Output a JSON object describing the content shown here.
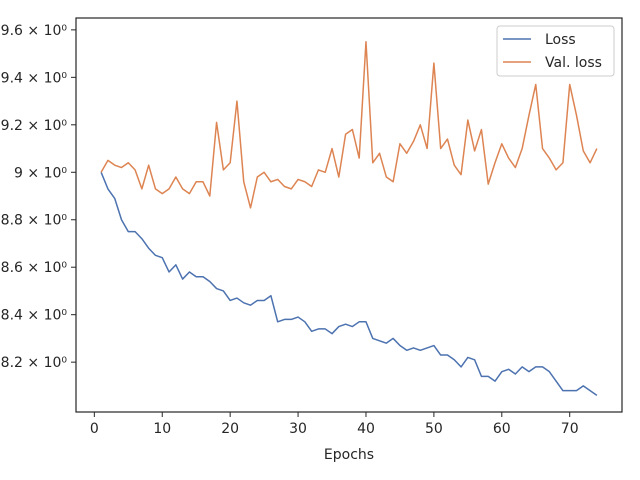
{
  "chart_data": {
    "type": "line",
    "xlabel": "Epochs",
    "ylabel": "",
    "title": "",
    "xlim": [
      -2.7,
      77.7
    ],
    "ylim": [
      7.99,
      9.65
    ],
    "x_ticks": [
      0,
      10,
      20,
      30,
      40,
      50,
      60,
      70
    ],
    "x_tick_labels": [
      "0",
      "10",
      "20",
      "30",
      "40",
      "50",
      "60",
      "70"
    ],
    "y_ticks": [
      8.2,
      8.4,
      8.6,
      8.8,
      9.0,
      9.2,
      9.4,
      9.6
    ],
    "y_tick_labels": [
      "8.2 × 10⁰",
      "8.4 × 10⁰",
      "8.6 × 10⁰",
      "8.8 × 10⁰",
      "9 × 10⁰",
      "9.2 × 10⁰",
      "9.4 × 10⁰",
      "9.6 × 10⁰"
    ],
    "legend_position": "top-right",
    "grid": false,
    "series": [
      {
        "name": "Loss",
        "color": "#4c72b0",
        "x": [
          1,
          2,
          3,
          4,
          5,
          6,
          7,
          8,
          9,
          10,
          11,
          12,
          13,
          14,
          15,
          16,
          17,
          18,
          19,
          20,
          21,
          22,
          23,
          24,
          25,
          26,
          27,
          28,
          29,
          30,
          31,
          32,
          33,
          34,
          35,
          36,
          37,
          38,
          39,
          40,
          41,
          42,
          43,
          44,
          45,
          46,
          47,
          48,
          49,
          50,
          51,
          52,
          53,
          54,
          55,
          56,
          57,
          58,
          59,
          60,
          61,
          62,
          63,
          64,
          65,
          66,
          67,
          68,
          69,
          70,
          71,
          72,
          73,
          74
        ],
        "values": [
          9.0,
          8.93,
          8.89,
          8.8,
          8.75,
          8.75,
          8.72,
          8.68,
          8.65,
          8.64,
          8.58,
          8.61,
          8.55,
          8.58,
          8.56,
          8.56,
          8.54,
          8.51,
          8.5,
          8.46,
          8.47,
          8.45,
          8.44,
          8.46,
          8.46,
          8.48,
          8.37,
          8.38,
          8.38,
          8.39,
          8.37,
          8.33,
          8.34,
          8.34,
          8.32,
          8.35,
          8.36,
          8.35,
          8.37,
          8.37,
          8.3,
          8.29,
          8.28,
          8.3,
          8.27,
          8.25,
          8.26,
          8.25,
          8.26,
          8.27,
          8.23,
          8.23,
          8.21,
          8.18,
          8.22,
          8.21,
          8.14,
          8.14,
          8.12,
          8.16,
          8.17,
          8.15,
          8.18,
          8.16,
          8.18,
          8.18,
          8.16,
          8.12,
          8.08,
          8.08,
          8.08,
          8.1,
          8.08,
          8.06
        ]
      },
      {
        "name": "Val. loss",
        "color": "#dd8452",
        "x": [
          1,
          2,
          3,
          4,
          5,
          6,
          7,
          8,
          9,
          10,
          11,
          12,
          13,
          14,
          15,
          16,
          17,
          18,
          19,
          20,
          21,
          22,
          23,
          24,
          25,
          26,
          27,
          28,
          29,
          30,
          31,
          32,
          33,
          34,
          35,
          36,
          37,
          38,
          39,
          40,
          41,
          42,
          43,
          44,
          45,
          46,
          47,
          48,
          49,
          50,
          51,
          52,
          53,
          54,
          55,
          56,
          57,
          58,
          59,
          60,
          61,
          62,
          63,
          64,
          65,
          66,
          67,
          68,
          69,
          70,
          71,
          72,
          73,
          74
        ],
        "values": [
          9.0,
          9.05,
          9.03,
          9.02,
          9.04,
          9.01,
          8.93,
          9.03,
          8.93,
          8.91,
          8.93,
          8.98,
          8.93,
          8.91,
          8.96,
          8.96,
          8.9,
          9.21,
          9.01,
          9.04,
          9.3,
          8.96,
          8.85,
          8.98,
          9.0,
          8.96,
          8.97,
          8.94,
          8.93,
          8.97,
          8.96,
          8.94,
          9.01,
          9.0,
          9.1,
          8.98,
          9.16,
          9.18,
          9.06,
          9.55,
          9.04,
          9.08,
          8.98,
          8.96,
          9.12,
          9.08,
          9.13,
          9.2,
          9.1,
          9.46,
          9.1,
          9.14,
          9.03,
          8.99,
          9.22,
          9.09,
          9.18,
          8.95,
          9.04,
          9.12,
          9.06,
          9.02,
          9.1,
          9.24,
          9.37,
          9.1,
          9.06,
          9.01,
          9.04,
          9.37,
          9.24,
          9.09,
          9.04,
          9.1
        ]
      }
    ]
  }
}
